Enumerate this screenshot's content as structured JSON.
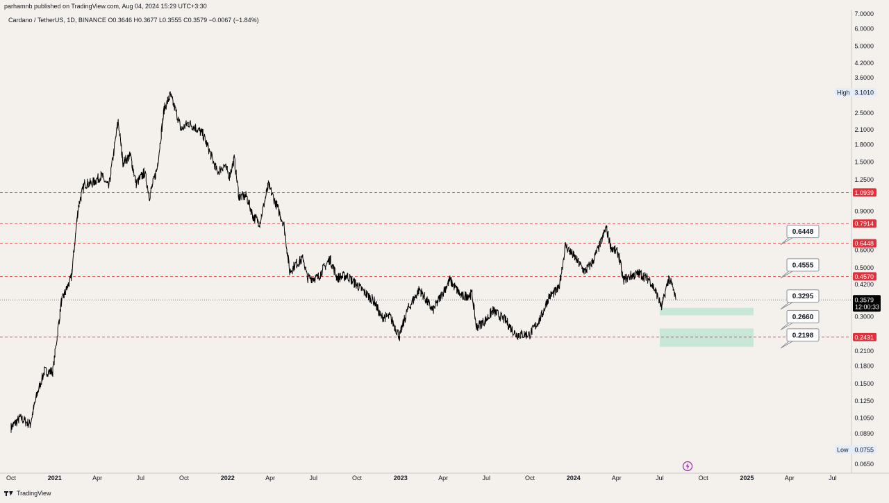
{
  "header": {
    "publisher": "parhamnb published on TradingView.com, Aug 04, 2024 15:29 UTC+3:30",
    "symbol": "Cardano / TetherUS, 1D, BINANCE",
    "open": "O0.3646",
    "high": "H0.3677",
    "low": "L0.3555",
    "close": "C0.3579",
    "change": "−0.0067 (−1.84%)"
  },
  "footer": {
    "brand": "TradingView"
  },
  "chart_data": {
    "type": "line",
    "y_scale": "log",
    "ylim": [
      0.0635,
      7.0
    ],
    "y_ticks": [
      "7.0000",
      "6.0000",
      "5.0000",
      "4.2000",
      "3.6000",
      "3.1010",
      "2.5000",
      "2.1000",
      "1.8000",
      "1.5000",
      "1.2500",
      "1.0939",
      "0.9000",
      "0.7914",
      "0.6448",
      "0.6000",
      "0.5000",
      "0.4570",
      "0.4200",
      "0.3579",
      "0.3000",
      "0.2431",
      "0.2100",
      "0.1800",
      "0.1500",
      "0.1250",
      "0.1050",
      "0.0890",
      "0.0755",
      "0.0650"
    ],
    "y_ticks_plain": [
      7.0,
      6.0,
      5.0,
      4.2,
      3.6,
      2.5,
      2.1,
      1.8,
      1.5,
      1.25,
      0.9,
      0.6,
      0.5,
      0.42,
      0.3,
      0.21,
      0.18,
      0.15,
      0.125,
      0.105,
      0.089,
      0.065
    ],
    "x_ticks": [
      "Oct",
      "2021",
      "Apr",
      "Jul",
      "Oct",
      "2022",
      "Apr",
      "Jul",
      "Oct",
      "2023",
      "Apr",
      "Jul",
      "Oct",
      "2024",
      "Apr",
      "Jul",
      "Oct",
      "2025",
      "Apr",
      "Jul"
    ],
    "x_bold": [
      "2021",
      "2022",
      "2023",
      "2024",
      "2025"
    ],
    "xlim": [
      "2020-10-01",
      "2025-08-01"
    ],
    "price_series": [
      [
        "2020-10-01",
        0.095
      ],
      [
        "2020-10-20",
        0.105
      ],
      [
        "2020-11-10",
        0.098
      ],
      [
        "2020-11-25",
        0.135
      ],
      [
        "2020-12-10",
        0.17
      ],
      [
        "2020-12-28",
        0.17
      ],
      [
        "2021-01-15",
        0.35
      ],
      [
        "2021-02-05",
        0.45
      ],
      [
        "2021-02-20",
        0.95
      ],
      [
        "2021-03-05",
        1.2
      ],
      [
        "2021-03-20",
        1.2
      ],
      [
        "2021-04-10",
        1.3
      ],
      [
        "2021-04-25",
        1.15
      ],
      [
        "2021-05-15",
        2.3
      ],
      [
        "2021-05-25",
        1.5
      ],
      [
        "2021-06-10",
        1.6
      ],
      [
        "2021-06-22",
        1.2
      ],
      [
        "2021-07-10",
        1.35
      ],
      [
        "2021-07-20",
        1.05
      ],
      [
        "2021-08-05",
        1.4
      ],
      [
        "2021-08-20",
        2.6
      ],
      [
        "2021-09-02",
        3.0
      ],
      [
        "2021-09-15",
        2.5
      ],
      [
        "2021-09-25",
        2.1
      ],
      [
        "2021-10-10",
        2.25
      ],
      [
        "2021-10-25",
        2.15
      ],
      [
        "2021-11-10",
        2.0
      ],
      [
        "2021-11-25",
        1.65
      ],
      [
        "2021-12-10",
        1.35
      ],
      [
        "2021-12-25",
        1.45
      ],
      [
        "2022-01-05",
        1.3
      ],
      [
        "2022-01-15",
        1.55
      ],
      [
        "2022-01-25",
        1.05
      ],
      [
        "2022-02-10",
        1.05
      ],
      [
        "2022-02-24",
        0.85
      ],
      [
        "2022-03-10",
        0.8
      ],
      [
        "2022-03-28",
        1.18
      ],
      [
        "2022-04-15",
        0.95
      ],
      [
        "2022-04-30",
        0.78
      ],
      [
        "2022-05-12",
        0.48
      ],
      [
        "2022-05-25",
        0.52
      ],
      [
        "2022-06-10",
        0.55
      ],
      [
        "2022-06-18",
        0.45
      ],
      [
        "2022-07-10",
        0.45
      ],
      [
        "2022-08-05",
        0.55
      ],
      [
        "2022-08-20",
        0.45
      ],
      [
        "2022-09-10",
        0.46
      ],
      [
        "2022-10-10",
        0.4
      ],
      [
        "2022-11-08",
        0.35
      ],
      [
        "2022-11-20",
        0.3
      ],
      [
        "2022-12-10",
        0.3
      ],
      [
        "2022-12-30",
        0.245
      ],
      [
        "2023-01-15",
        0.32
      ],
      [
        "2023-02-10",
        0.4
      ],
      [
        "2023-03-10",
        0.32
      ],
      [
        "2023-04-15",
        0.44
      ],
      [
        "2023-05-10",
        0.37
      ],
      [
        "2023-06-01",
        0.38
      ],
      [
        "2023-06-10",
        0.27
      ],
      [
        "2023-06-30",
        0.29
      ],
      [
        "2023-07-15",
        0.32
      ],
      [
        "2023-08-10",
        0.29
      ],
      [
        "2023-09-01",
        0.25
      ],
      [
        "2023-10-01",
        0.25
      ],
      [
        "2023-10-25",
        0.3
      ],
      [
        "2023-11-10",
        0.37
      ],
      [
        "2023-12-01",
        0.4
      ],
      [
        "2023-12-15",
        0.63
      ],
      [
        "2024-01-05",
        0.55
      ],
      [
        "2024-01-25",
        0.48
      ],
      [
        "2024-02-10",
        0.53
      ],
      [
        "2024-02-28",
        0.65
      ],
      [
        "2024-03-10",
        0.76
      ],
      [
        "2024-03-20",
        0.62
      ],
      [
        "2024-04-05",
        0.58
      ],
      [
        "2024-04-15",
        0.44
      ],
      [
        "2024-05-01",
        0.46
      ],
      [
        "2024-05-20",
        0.47
      ],
      [
        "2024-06-10",
        0.44
      ],
      [
        "2024-06-25",
        0.38
      ],
      [
        "2024-07-05",
        0.33
      ],
      [
        "2024-07-20",
        0.45
      ],
      [
        "2024-07-28",
        0.41
      ],
      [
        "2024-08-04",
        0.3579
      ]
    ],
    "current_price": {
      "value": 0.3579,
      "label": "0.3579",
      "countdown": "12:00:33"
    },
    "high_marker": {
      "label": "High",
      "value": "3.1010"
    },
    "low_marker": {
      "label": "Low",
      "value": "0.0755"
    },
    "resistance_lines": [
      {
        "value": 1.0939,
        "label": "1.0939"
      },
      {
        "value": 0.7914,
        "label": "0.7914"
      },
      {
        "value": 0.6448,
        "label": "0.6448"
      },
      {
        "value": 0.457,
        "label": "0.4570"
      },
      {
        "value": 0.2431,
        "label": "0.2431"
      }
    ],
    "zones": [
      {
        "from_date": "2024-07-01",
        "to_date": "2025-01-15",
        "low": 0.305,
        "high": 0.3295
      },
      {
        "from_date": "2024-07-01",
        "to_date": "2025-01-15",
        "low": 0.2198,
        "high": 0.266
      }
    ],
    "callouts": [
      {
        "label": "0.6448",
        "value": 0.6448
      },
      {
        "label": "0.4555",
        "value": 0.4555
      },
      {
        "label": "0.3295",
        "value": 0.3295
      },
      {
        "label": "0.2660",
        "value": 0.266
      },
      {
        "label": "0.2198",
        "value": 0.2198
      }
    ],
    "colors": {
      "background": "#f4f1ec",
      "price": "#000000",
      "resistance": "#e0303b",
      "zone": "#a6dfc8",
      "current_badge": "#000000",
      "high_low_badge": "#e3ecf9",
      "callout_border": "#8a8e97"
    },
    "icons": [
      "lightning-icon",
      "tradingview-logo-icon"
    ]
  }
}
